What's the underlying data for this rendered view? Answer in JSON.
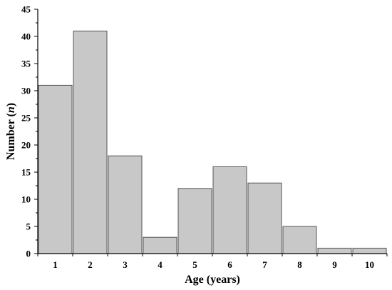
{
  "chart_data": {
    "type": "bar",
    "title": "",
    "categories": [
      "1",
      "2",
      "3",
      "4",
      "5",
      "6",
      "7",
      "8",
      "9",
      "10"
    ],
    "values": [
      31,
      41,
      18,
      3,
      12,
      16,
      13,
      5,
      1,
      1
    ],
    "xlabel": "Age (years)",
    "ylabel": {
      "prefix": "Number (",
      "symbol": "n",
      "suffix": ")"
    },
    "ylim": [
      0,
      45
    ],
    "yticks": [
      "0",
      "5",
      "10",
      "15",
      "20",
      "25",
      "30",
      "35",
      "40",
      "45"
    ],
    "grid": false,
    "legend": "none",
    "bar_fill": "#c8c8c8",
    "bar_stroke": "#555555",
    "axis_color": "#000000"
  }
}
